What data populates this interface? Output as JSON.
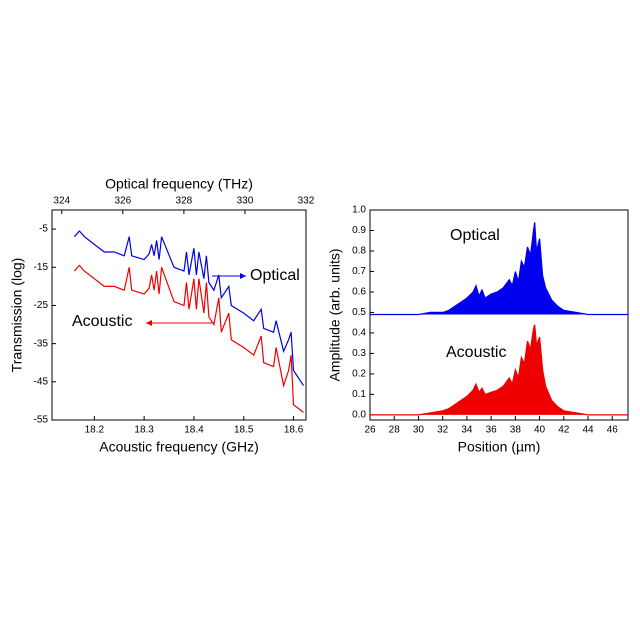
{
  "chart_data": [
    {
      "type": "line",
      "xlabel": "Acoustic frequency (GHz)",
      "x2label": "Optical frequency (THz)",
      "ylabel": "Transmission (log)",
      "xlim": [
        18.115,
        18.625
      ],
      "xticks": [
        18.2,
        18.3,
        18.4,
        18.5,
        18.6
      ],
      "x2lim": [
        323.68,
        332
      ],
      "x2ticks": [
        324,
        326,
        328,
        330,
        332
      ],
      "ylim": [
        -55,
        0
      ],
      "yticks": [
        -5,
        -15,
        -25,
        -35,
        -45,
        -55
      ],
      "x": [
        18.16,
        18.17,
        18.18,
        18.2,
        18.22,
        18.24,
        18.26,
        18.27,
        18.275,
        18.3,
        18.31,
        18.315,
        18.32,
        18.325,
        18.33,
        18.335,
        18.36,
        18.38,
        18.385,
        18.39,
        18.4,
        18.405,
        18.41,
        18.42,
        18.425,
        18.43,
        18.44,
        18.45,
        18.455,
        18.47,
        18.475,
        18.5,
        18.52,
        18.535,
        18.54,
        18.56,
        18.565,
        18.58,
        18.59,
        18.595,
        18.6,
        18.62
      ],
      "series": [
        {
          "name": "Optical",
          "color": "#0000ee",
          "values": [
            -7,
            -5.5,
            -7,
            -9,
            -11,
            -11,
            -12,
            -7,
            -12,
            -13,
            -11.5,
            -9,
            -12,
            -8,
            -13,
            -7,
            -15,
            -16,
            -11,
            -17,
            -10,
            -17,
            -11,
            -18,
            -12,
            -19,
            -21,
            -17,
            -23,
            -20,
            -25,
            -27,
            -29,
            -26,
            -31,
            -32,
            -29,
            -37,
            -34,
            -32,
            -42,
            -46
          ]
        },
        {
          "name": "Acoustic",
          "color": "#ee0000",
          "values": [
            -16,
            -14.5,
            -16,
            -18,
            -20,
            -20,
            -21,
            -15,
            -21,
            -22,
            -20.5,
            -17,
            -21,
            -16,
            -22,
            -15,
            -24,
            -25,
            -19,
            -26,
            -18,
            -26,
            -18,
            -27,
            -19,
            -28,
            -30,
            -23,
            -32,
            -27,
            -34,
            -36,
            -38,
            -33,
            -40,
            -41,
            -36,
            -46,
            -42,
            -38,
            -51,
            -53
          ]
        }
      ],
      "fill": false
    },
    {
      "type": "line",
      "xlabel": "Position (µm)",
      "ylabel": "Amplitude (arb. units)",
      "xlim": [
        26,
        47.3
      ],
      "xticks": [
        26,
        28,
        30,
        32,
        34,
        36,
        38,
        40,
        42,
        44,
        46
      ],
      "ylim": [
        -0.025,
        1.0
      ],
      "yticks": [
        {
          "value": 0,
          "label": "0.0"
        },
        0.1,
        0.2,
        0.3,
        0.4,
        0.5,
        0.6,
        0.7,
        0.8,
        0.9,
        {
          "value": 1.0,
          "label": "1.0"
        }
      ],
      "x": [
        26,
        30,
        31,
        32,
        32.5,
        33,
        33.5,
        34,
        34.5,
        34.75,
        35,
        35.25,
        35.5,
        36,
        36.5,
        37,
        37.5,
        37.75,
        38,
        38.25,
        38.5,
        38.75,
        39,
        39.25,
        39.5,
        39.6,
        39.75,
        40,
        40.25,
        40.5,
        41,
        41.5,
        42,
        43,
        44,
        47.3
      ],
      "series": [
        {
          "name": "Optical",
          "color": "#0000ee",
          "values": [
            0.49,
            0.49,
            0.5,
            0.5,
            0.51,
            0.53,
            0.55,
            0.57,
            0.6,
            0.63,
            0.58,
            0.61,
            0.57,
            0.59,
            0.6,
            0.62,
            0.66,
            0.63,
            0.7,
            0.65,
            0.75,
            0.72,
            0.82,
            0.78,
            0.9,
            0.94,
            0.8,
            0.86,
            0.68,
            0.62,
            0.56,
            0.53,
            0.51,
            0.5,
            0.49,
            0.49
          ]
        },
        {
          "name": "Acoustic",
          "color": "#ee0000",
          "values": [
            0,
            0,
            0.01,
            0.02,
            0.03,
            0.05,
            0.07,
            0.09,
            0.12,
            0.15,
            0.11,
            0.13,
            0.1,
            0.11,
            0.12,
            0.14,
            0.18,
            0.15,
            0.22,
            0.18,
            0.28,
            0.25,
            0.36,
            0.32,
            0.42,
            0.44,
            0.34,
            0.38,
            0.22,
            0.14,
            0.07,
            0.04,
            0.02,
            0.01,
            0,
            0
          ]
        }
      ],
      "fill": true
    }
  ]
}
